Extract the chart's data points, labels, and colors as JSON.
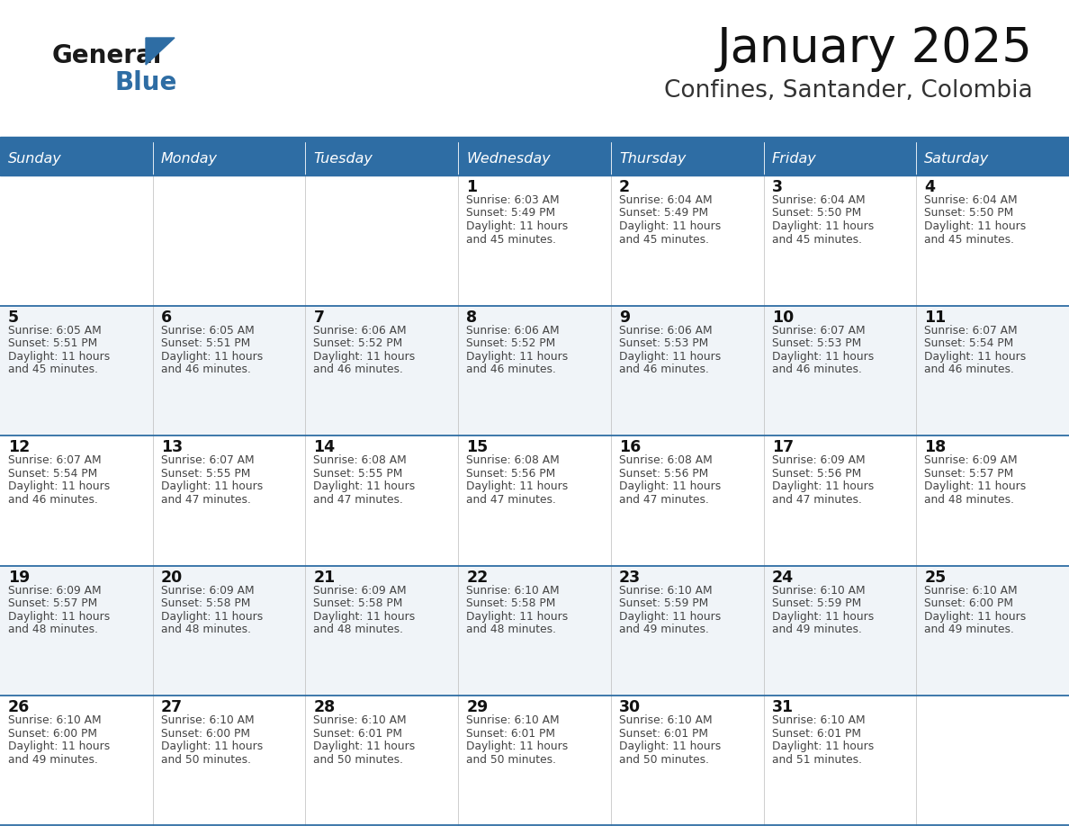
{
  "title": "January 2025",
  "subtitle": "Confines, Santander, Colombia",
  "days_of_week": [
    "Sunday",
    "Monday",
    "Tuesday",
    "Wednesday",
    "Thursday",
    "Friday",
    "Saturday"
  ],
  "header_bg": "#2E6DA4",
  "header_text": "#FFFFFF",
  "cell_bg_odd": "#F0F4F8",
  "cell_bg_even": "#FFFFFF",
  "line_color": "#2E6DA4",
  "text_color": "#444444",
  "day_num_color": "#111111",
  "title_color": "#111111",
  "subtitle_color": "#333333",
  "logo_general_color": "#1a1a1a",
  "logo_blue_color": "#2E6DA4",
  "calendar_data": [
    [
      null,
      null,
      null,
      {
        "day": 1,
        "sunrise": "6:03 AM",
        "sunset": "5:49 PM",
        "daylight": "11 hours and 45 minutes."
      },
      {
        "day": 2,
        "sunrise": "6:04 AM",
        "sunset": "5:49 PM",
        "daylight": "11 hours and 45 minutes."
      },
      {
        "day": 3,
        "sunrise": "6:04 AM",
        "sunset": "5:50 PM",
        "daylight": "11 hours and 45 minutes."
      },
      {
        "day": 4,
        "sunrise": "6:04 AM",
        "sunset": "5:50 PM",
        "daylight": "11 hours and 45 minutes."
      }
    ],
    [
      {
        "day": 5,
        "sunrise": "6:05 AM",
        "sunset": "5:51 PM",
        "daylight": "11 hours and 45 minutes."
      },
      {
        "day": 6,
        "sunrise": "6:05 AM",
        "sunset": "5:51 PM",
        "daylight": "11 hours and 46 minutes."
      },
      {
        "day": 7,
        "sunrise": "6:06 AM",
        "sunset": "5:52 PM",
        "daylight": "11 hours and 46 minutes."
      },
      {
        "day": 8,
        "sunrise": "6:06 AM",
        "sunset": "5:52 PM",
        "daylight": "11 hours and 46 minutes."
      },
      {
        "day": 9,
        "sunrise": "6:06 AM",
        "sunset": "5:53 PM",
        "daylight": "11 hours and 46 minutes."
      },
      {
        "day": 10,
        "sunrise": "6:07 AM",
        "sunset": "5:53 PM",
        "daylight": "11 hours and 46 minutes."
      },
      {
        "day": 11,
        "sunrise": "6:07 AM",
        "sunset": "5:54 PM",
        "daylight": "11 hours and 46 minutes."
      }
    ],
    [
      {
        "day": 12,
        "sunrise": "6:07 AM",
        "sunset": "5:54 PM",
        "daylight": "11 hours and 46 minutes."
      },
      {
        "day": 13,
        "sunrise": "6:07 AM",
        "sunset": "5:55 PM",
        "daylight": "11 hours and 47 minutes."
      },
      {
        "day": 14,
        "sunrise": "6:08 AM",
        "sunset": "5:55 PM",
        "daylight": "11 hours and 47 minutes."
      },
      {
        "day": 15,
        "sunrise": "6:08 AM",
        "sunset": "5:56 PM",
        "daylight": "11 hours and 47 minutes."
      },
      {
        "day": 16,
        "sunrise": "6:08 AM",
        "sunset": "5:56 PM",
        "daylight": "11 hours and 47 minutes."
      },
      {
        "day": 17,
        "sunrise": "6:09 AM",
        "sunset": "5:56 PM",
        "daylight": "11 hours and 47 minutes."
      },
      {
        "day": 18,
        "sunrise": "6:09 AM",
        "sunset": "5:57 PM",
        "daylight": "11 hours and 48 minutes."
      }
    ],
    [
      {
        "day": 19,
        "sunrise": "6:09 AM",
        "sunset": "5:57 PM",
        "daylight": "11 hours and 48 minutes."
      },
      {
        "day": 20,
        "sunrise": "6:09 AM",
        "sunset": "5:58 PM",
        "daylight": "11 hours and 48 minutes."
      },
      {
        "day": 21,
        "sunrise": "6:09 AM",
        "sunset": "5:58 PM",
        "daylight": "11 hours and 48 minutes."
      },
      {
        "day": 22,
        "sunrise": "6:10 AM",
        "sunset": "5:58 PM",
        "daylight": "11 hours and 48 minutes."
      },
      {
        "day": 23,
        "sunrise": "6:10 AM",
        "sunset": "5:59 PM",
        "daylight": "11 hours and 49 minutes."
      },
      {
        "day": 24,
        "sunrise": "6:10 AM",
        "sunset": "5:59 PM",
        "daylight": "11 hours and 49 minutes."
      },
      {
        "day": 25,
        "sunrise": "6:10 AM",
        "sunset": "6:00 PM",
        "daylight": "11 hours and 49 minutes."
      }
    ],
    [
      {
        "day": 26,
        "sunrise": "6:10 AM",
        "sunset": "6:00 PM",
        "daylight": "11 hours and 49 minutes."
      },
      {
        "day": 27,
        "sunrise": "6:10 AM",
        "sunset": "6:00 PM",
        "daylight": "11 hours and 50 minutes."
      },
      {
        "day": 28,
        "sunrise": "6:10 AM",
        "sunset": "6:01 PM",
        "daylight": "11 hours and 50 minutes."
      },
      {
        "day": 29,
        "sunrise": "6:10 AM",
        "sunset": "6:01 PM",
        "daylight": "11 hours and 50 minutes."
      },
      {
        "day": 30,
        "sunrise": "6:10 AM",
        "sunset": "6:01 PM",
        "daylight": "11 hours and 50 minutes."
      },
      {
        "day": 31,
        "sunrise": "6:10 AM",
        "sunset": "6:01 PM",
        "daylight": "11 hours and 51 minutes."
      },
      null
    ]
  ],
  "figsize": [
    11.88,
    9.18
  ],
  "dpi": 100
}
